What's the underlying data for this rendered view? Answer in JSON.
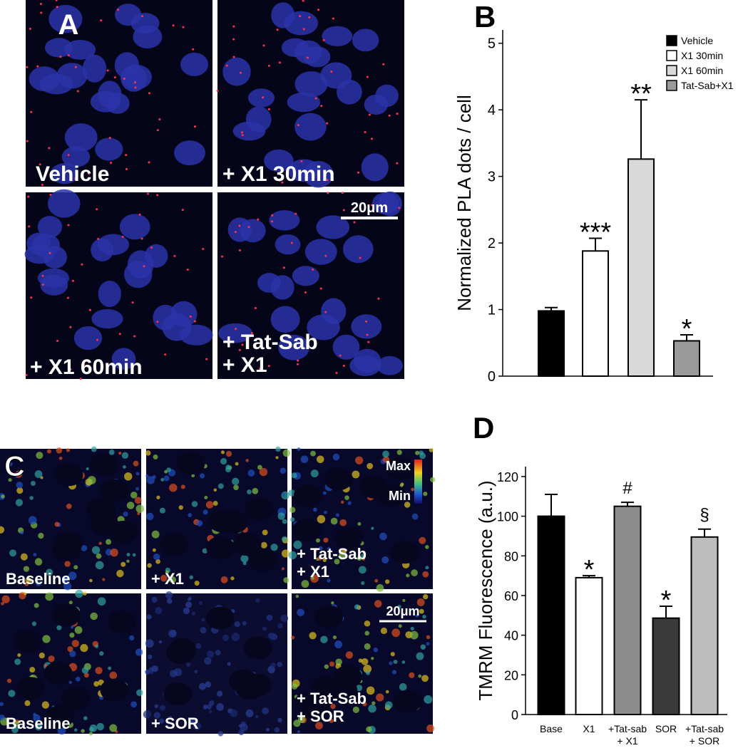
{
  "images": {
    "panel_a": {
      "letter": "A",
      "labels": [
        "Vehicle",
        "+ X1 30min",
        "+ X1 60min",
        "+ Tat-Sab\n+ X1"
      ],
      "scale_bar": "20μm"
    },
    "panel_c": {
      "letter": "C",
      "labels": [
        "Baseline",
        "+ X1",
        "+ Tat-Sab\n+ X1",
        "Baseline",
        "+ SOR",
        "+ Tat-Sab\n+ SOR"
      ],
      "scale_bar": "20μm",
      "colorbar_max": "Max",
      "colorbar_min": "Min"
    }
  },
  "chart_data": [
    {
      "type": "bar",
      "letter": "B",
      "y_label": "Normalized PLA dots / cell",
      "categories": [
        "Vehicle",
        "X1 30min",
        "X1 60min",
        "Tat-Sab+X1"
      ],
      "values": [
        0.98,
        1.88,
        3.26,
        0.53
      ],
      "errors": [
        0.05,
        0.19,
        0.89,
        0.09
      ],
      "colors": [
        "#000000",
        "#ffffff",
        "#d9d9d9",
        "#9a9a9a"
      ],
      "annotations": [
        null,
        "***",
        "**",
        "*"
      ],
      "ylim": [
        0,
        5.2
      ],
      "yticks": [
        0,
        1,
        2,
        3,
        4,
        5
      ],
      "legend": "top-right"
    },
    {
      "type": "bar",
      "letter": "D",
      "y_label": "TMRM Fluorescence (a.u.)",
      "categories": [
        "Base",
        "X1",
        "+Tat-sab\n+ X1",
        "SOR",
        "+Tat-sab\n+ SOR"
      ],
      "values": [
        100,
        69,
        105,
        48.6,
        89.5
      ],
      "errors": [
        11,
        1,
        2,
        6,
        4
      ],
      "colors": [
        "#000000",
        "#ffffff",
        "#8c8c8c",
        "#3a3a3a",
        "#bdbdbd"
      ],
      "annotations": [
        null,
        "*",
        "#",
        "*",
        "§"
      ],
      "ylim": [
        0,
        125
      ],
      "yticks": [
        0,
        20,
        40,
        60,
        80,
        100,
        120
      ]
    }
  ]
}
